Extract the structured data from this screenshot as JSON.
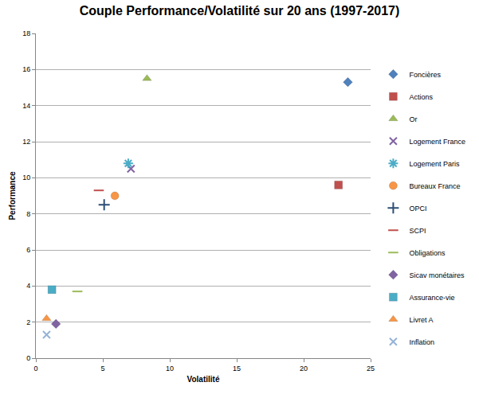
{
  "chart_data": {
    "type": "scatter",
    "title": "Couple Performance/Volatilité sur 20 ans (1997-2017)",
    "x_label": "Volatilité",
    "y_label": "Performance",
    "xlim": [
      0,
      25
    ],
    "xticks": [
      0,
      5,
      10,
      15,
      20,
      25
    ],
    "ylim": [
      0,
      18
    ],
    "yticks": [
      0,
      2,
      4,
      6,
      8,
      10,
      12,
      14,
      16,
      18
    ],
    "grid": true,
    "legend": "right",
    "series": [
      {
        "name": "Foncières",
        "color": "#4f81bd",
        "marker": "diamond",
        "x": [
          23.3
        ],
        "values": [
          15.3
        ]
      },
      {
        "name": "Actions",
        "color": "#c0504d",
        "marker": "square",
        "x": [
          22.6
        ],
        "values": [
          9.6
        ]
      },
      {
        "name": "Or",
        "color": "#9bbb59",
        "marker": "triangle",
        "x": [
          8.3
        ],
        "values": [
          15.5
        ]
      },
      {
        "name": "Logement France",
        "color": "#8064a2",
        "marker": "x",
        "x": [
          7.1
        ],
        "values": [
          10.5
        ]
      },
      {
        "name": "Logement Paris",
        "color": "#4bacc6",
        "marker": "asterisk",
        "x": [
          6.9
        ],
        "values": [
          10.8
        ]
      },
      {
        "name": "Bureaux France",
        "color": "#f79646",
        "marker": "circle",
        "x": [
          5.9
        ],
        "values": [
          9.0
        ]
      },
      {
        "name": "OPCI",
        "color": "#2c4d75",
        "marker": "plus",
        "x": [
          5.1
        ],
        "values": [
          8.5
        ]
      },
      {
        "name": "SCPI",
        "color": "#c0504d",
        "marker": "dash",
        "x": [
          4.7
        ],
        "values": [
          9.3
        ]
      },
      {
        "name": "Obligations",
        "color": "#9bbb59",
        "marker": "dash",
        "x": [
          3.1
        ],
        "values": [
          3.7
        ]
      },
      {
        "name": "Sicav monétaires",
        "color": "#8064a2",
        "marker": "diamond",
        "x": [
          1.5
        ],
        "values": [
          1.9
        ]
      },
      {
        "name": "Assurance-vie",
        "color": "#4bacc6",
        "marker": "square",
        "x": [
          1.2
        ],
        "values": [
          3.8
        ]
      },
      {
        "name": "Livret A",
        "color": "#f79646",
        "marker": "triangle",
        "x": [
          0.8
        ],
        "values": [
          2.2
        ]
      },
      {
        "name": "Inflation",
        "color": "#95b3d7",
        "marker": "x",
        "x": [
          0.8
        ],
        "values": [
          1.3
        ]
      }
    ]
  }
}
